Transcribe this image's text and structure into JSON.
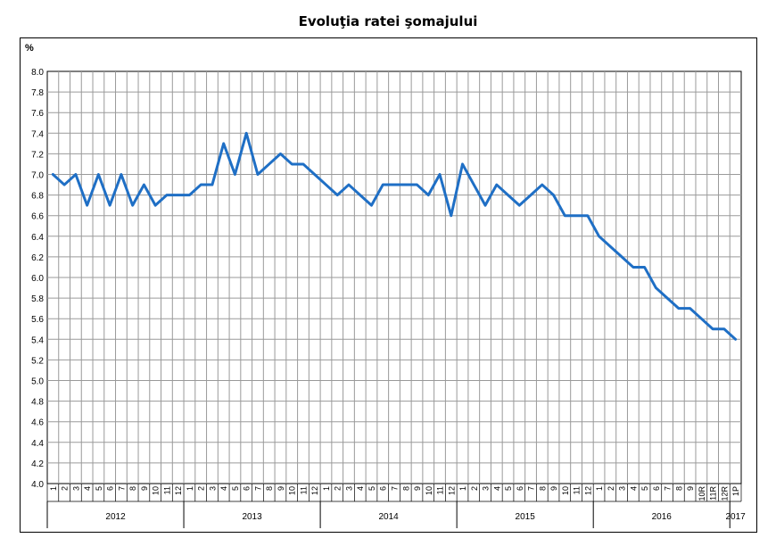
{
  "chart_data": {
    "type": "line",
    "title": "Evoluţia ratei şomajului",
    "ylabel": "%",
    "ylim": [
      4.0,
      8.0
    ],
    "ytick_step": 0.2,
    "grid": true,
    "line_color": "#1f6fc5",
    "grid_color": "#9a9a9a",
    "x_month_labels": [
      "1",
      "2",
      "3",
      "4",
      "5",
      "6",
      "7",
      "8",
      "9",
      "10",
      "11",
      "12",
      "1",
      "2",
      "3",
      "4",
      "5",
      "6",
      "7",
      "8",
      "9",
      "10",
      "11",
      "12",
      "1",
      "2",
      "3",
      "4",
      "5",
      "6",
      "7",
      "8",
      "9",
      "10",
      "11",
      "12",
      "1",
      "2",
      "3",
      "4",
      "5",
      "6",
      "7",
      "8",
      "9",
      "10",
      "11",
      "12",
      "1",
      "2",
      "3",
      "4",
      "5",
      "6",
      "7",
      "8",
      "9",
      "10R",
      "11R",
      "12R",
      "1P"
    ],
    "years": [
      {
        "label": "2012",
        "months": 12
      },
      {
        "label": "2013",
        "months": 12
      },
      {
        "label": "2014",
        "months": 12
      },
      {
        "label": "2015",
        "months": 12
      },
      {
        "label": "2016",
        "months": 12
      },
      {
        "label": "2017",
        "months": 1
      }
    ],
    "values": [
      7.0,
      6.9,
      7.0,
      6.7,
      7.0,
      6.7,
      7.0,
      6.7,
      6.9,
      6.7,
      6.8,
      6.8,
      6.8,
      6.9,
      6.9,
      7.3,
      7.0,
      7.4,
      7.0,
      7.1,
      7.2,
      7.1,
      7.1,
      7.0,
      6.9,
      6.8,
      6.9,
      6.8,
      6.7,
      6.9,
      6.9,
      6.9,
      6.9,
      6.8,
      7.0,
      6.6,
      7.1,
      6.9,
      6.7,
      6.9,
      6.8,
      6.7,
      6.8,
      6.9,
      6.8,
      6.6,
      6.6,
      6.6,
      6.4,
      6.3,
      6.2,
      6.1,
      6.1,
      5.9,
      5.8,
      5.7,
      5.7,
      5.6,
      5.5,
      5.5,
      5.4
    ]
  }
}
